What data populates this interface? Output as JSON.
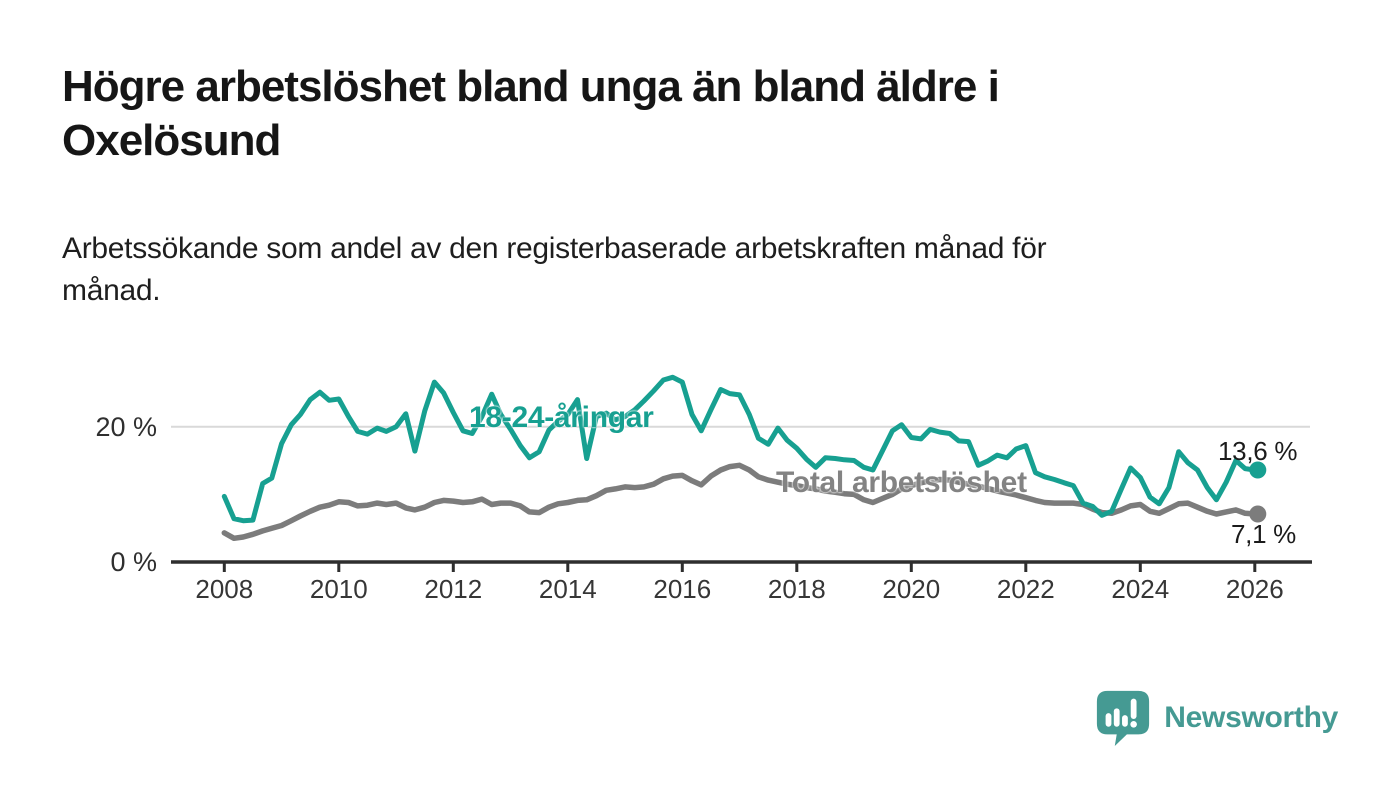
{
  "header": {
    "title_line1": "Högre arbetslöshet bland unga än bland äldre i",
    "title_line2": "Oxelösund",
    "subtitle_line1": "Arbetssökande som andel av den registerbaserade arbetskraften månad för",
    "subtitle_line2": "månad."
  },
  "footer": {
    "brand": "Newsworthy"
  },
  "colors": {
    "youth_line": "#17A091",
    "total_line": "#7C7C7C",
    "grid_line": "#D9D9D9",
    "axis_line": "#2E2E2E",
    "brand_teal": "#459A93"
  },
  "chart_data": {
    "type": "line",
    "title": "Högre arbetslöshet bland unga än bland äldre i Oxelösund",
    "subtitle": "Arbetssökande som andel av den registerbaserade arbetskraften månad för månad.",
    "unit": "%",
    "x_range": [
      2008,
      2026
    ],
    "ylim": [
      0,
      29
    ],
    "grid": "horizontal-at-20-only",
    "legend": "inline-labels",
    "y_ticks": [
      {
        "value": 20,
        "label": "20 %"
      },
      {
        "value": 0,
        "label": "0 %"
      }
    ],
    "x_ticks": [
      {
        "value": 2008,
        "label": "2008"
      },
      {
        "value": 2010,
        "label": "2010"
      },
      {
        "value": 2012,
        "label": "2012"
      },
      {
        "value": 2014,
        "label": "2014"
      },
      {
        "value": 2016,
        "label": "2016"
      },
      {
        "value": 2018,
        "label": "2018"
      },
      {
        "value": 2020,
        "label": "2020"
      },
      {
        "value": 2022,
        "label": "2022"
      },
      {
        "value": 2024,
        "label": "2024"
      },
      {
        "value": 2026,
        "label": "2026"
      }
    ],
    "x": [
      2008,
      2008.17,
      2008.33,
      2008.5,
      2008.67,
      2008.83,
      2009,
      2009.17,
      2009.33,
      2009.5,
      2009.67,
      2009.83,
      2010,
      2010.17,
      2010.33,
      2010.5,
      2010.67,
      2010.83,
      2011,
      2011.17,
      2011.33,
      2011.5,
      2011.67,
      2011.83,
      2012,
      2012.17,
      2012.33,
      2012.5,
      2012.67,
      2012.83,
      2013,
      2013.17,
      2013.33,
      2013.5,
      2013.67,
      2013.83,
      2014,
      2014.17,
      2014.33,
      2014.5,
      2014.67,
      2014.83,
      2015,
      2015.17,
      2015.33,
      2015.5,
      2015.67,
      2015.83,
      2016,
      2016.17,
      2016.33,
      2016.5,
      2016.67,
      2016.83,
      2017,
      2017.17,
      2017.33,
      2017.5,
      2017.67,
      2017.83,
      2018,
      2018.17,
      2018.33,
      2018.5,
      2018.67,
      2018.83,
      2019,
      2019.17,
      2019.33,
      2019.5,
      2019.67,
      2019.83,
      2020,
      2020.17,
      2020.33,
      2020.5,
      2020.67,
      2020.83,
      2021,
      2021.17,
      2021.33,
      2021.5,
      2021.67,
      2021.83,
      2022,
      2022.17,
      2022.33,
      2022.5,
      2022.67,
      2022.83,
      2023,
      2023.17,
      2023.33,
      2023.5,
      2023.67,
      2023.83,
      2024,
      2024.17,
      2024.33,
      2024.5,
      2024.67,
      2024.83,
      2025,
      2025.17,
      2025.33,
      2025.5,
      2025.67,
      2025.83,
      2026
    ],
    "series": [
      {
        "name": "18-24-åringar",
        "color": "#17A091",
        "end_value": 13.6,
        "end_label": "13,6 %",
        "values": [
          9.7,
          6.4,
          6.1,
          6.2,
          11.6,
          12.4,
          17.5,
          20.3,
          21.8,
          24,
          25.1,
          23.9,
          24.1,
          21.5,
          19.3,
          18.9,
          19.8,
          19.3,
          20,
          21.9,
          16.4,
          22.3,
          26.6,
          25,
          22.1,
          19.4,
          19,
          21.5,
          24.8,
          21.8,
          19.6,
          17.2,
          15.4,
          16.3,
          19.5,
          20.8,
          21.8,
          24,
          15.3,
          21.5,
          22,
          21,
          21.5,
          22.5,
          23.8,
          25.3,
          26.9,
          27.3,
          26.6,
          21.8,
          19.4,
          22.5,
          25.5,
          24.9,
          24.7,
          21.8,
          18.3,
          17.4,
          19.8,
          18,
          16.8,
          15.2,
          14,
          15.4,
          15.3,
          15.1,
          15,
          14,
          13.6,
          16.5,
          19.4,
          20.3,
          18.4,
          18.2,
          19.6,
          19.2,
          19,
          17.9,
          17.8,
          14.3,
          14.9,
          15.8,
          15.4,
          16.7,
          17.2,
          13.2,
          12.6,
          12.2,
          11.7,
          11.3,
          8.7,
          8.2,
          6.9,
          7.5,
          10.8,
          13.9,
          12.5,
          9.6,
          8.6,
          11,
          16.3,
          14.7,
          13.6,
          11,
          9.2,
          11.8,
          15,
          13.8,
          13.6
        ]
      },
      {
        "name": "Total arbetslöshet",
        "color": "#7C7C7C",
        "end_value": 7.1,
        "end_label": "7,1 %",
        "values": [
          4.3,
          3.5,
          3.7,
          4.1,
          4.6,
          5,
          5.4,
          6.1,
          6.8,
          7.5,
          8.1,
          8.4,
          8.9,
          8.8,
          8.3,
          8.4,
          8.7,
          8.5,
          8.7,
          8,
          7.7,
          8.1,
          8.8,
          9.1,
          9,
          8.8,
          8.9,
          9.3,
          8.5,
          8.7,
          8.7,
          8.3,
          7.4,
          7.3,
          8.1,
          8.6,
          8.8,
          9.1,
          9.2,
          9.8,
          10.6,
          10.8,
          11.1,
          11,
          11.1,
          11.5,
          12.3,
          12.7,
          12.8,
          12,
          11.4,
          12.7,
          13.6,
          14.1,
          14.3,
          13.6,
          12.6,
          12.1,
          11.8,
          11.5,
          11.3,
          11,
          10.8,
          10.5,
          10.3,
          10.1,
          10,
          9.2,
          8.8,
          9.4,
          10,
          10.8,
          11.3,
          11.7,
          12,
          12.2,
          12.1,
          11.8,
          11.5,
          11.2,
          10.9,
          10.5,
          10.2,
          9.9,
          9.5,
          9.1,
          8.8,
          8.7,
          8.7,
          8.7,
          8.5,
          7.8,
          7.3,
          7.2,
          7.7,
          8.3,
          8.5,
          7.5,
          7.2,
          7.9,
          8.6,
          8.7,
          8.1,
          7.5,
          7.1,
          7.4,
          7.7,
          7.2,
          7.1
        ]
      }
    ]
  }
}
